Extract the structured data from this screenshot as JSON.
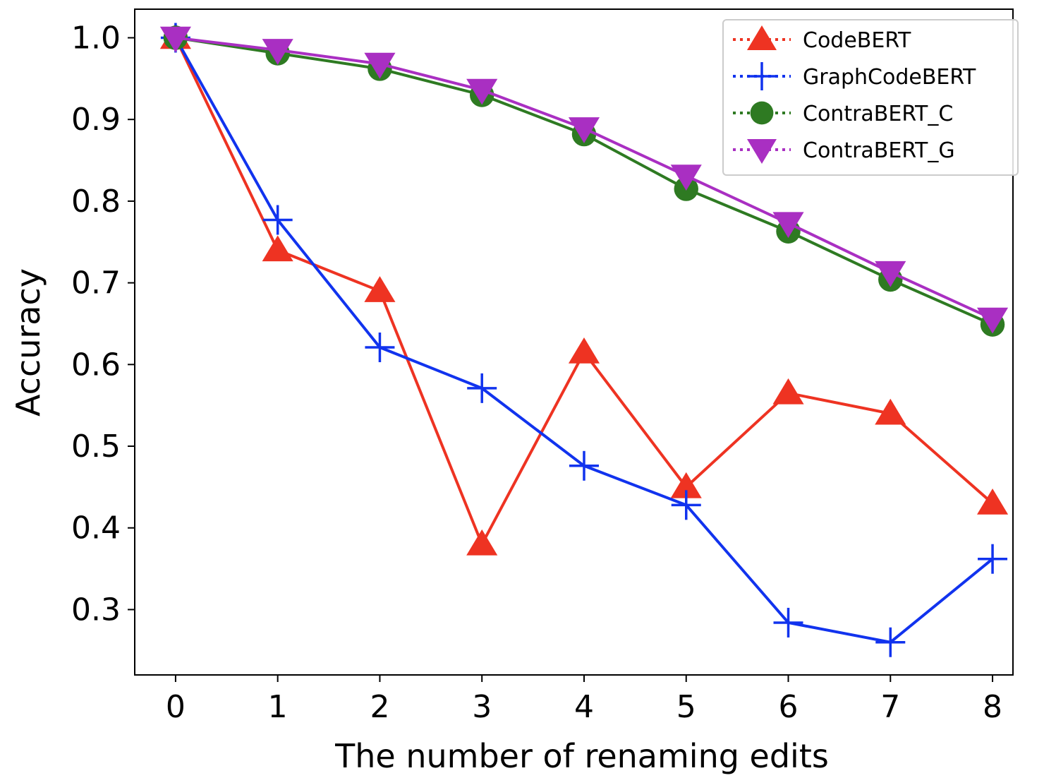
{
  "chart_data": {
    "type": "line",
    "xlabel": "The number of renaming edits",
    "ylabel": "Accuracy",
    "x": [
      0,
      1,
      2,
      3,
      4,
      5,
      6,
      7,
      8
    ],
    "x_ticks": [
      "0",
      "1",
      "2",
      "3",
      "4",
      "5",
      "6",
      "7",
      "8"
    ],
    "y_ticks": [
      "0.3",
      "0.4",
      "0.5",
      "0.6",
      "0.7",
      "0.8",
      "0.9",
      "1.0"
    ],
    "xlim": [
      -0.4,
      8.2
    ],
    "ylim": [
      0.22,
      1.035
    ],
    "grid": false,
    "legend_position": "top-right",
    "series": [
      {
        "name": "CodeBERT",
        "marker": "triangle-up",
        "color": "#ee3322",
        "values": [
          1.0,
          0.74,
          0.69,
          0.38,
          0.615,
          0.45,
          0.565,
          0.54,
          0.43
        ]
      },
      {
        "name": "GraphCodeBERT",
        "marker": "plus",
        "color": "#1133ee",
        "values": [
          1.0,
          0.777,
          0.621,
          0.571,
          0.476,
          0.428,
          0.284,
          0.26,
          0.362
        ]
      },
      {
        "name": "ContraBERT_C",
        "marker": "circle",
        "color": "#2e7a22",
        "values": [
          1.0,
          0.981,
          0.962,
          0.93,
          0.882,
          0.815,
          0.763,
          0.704,
          0.649
        ]
      },
      {
        "name": "ContraBERT_G",
        "marker": "triangle-down",
        "color": "#a92fc2",
        "values": [
          1.0,
          0.985,
          0.968,
          0.936,
          0.889,
          0.831,
          0.773,
          0.713,
          0.656
        ]
      }
    ]
  }
}
